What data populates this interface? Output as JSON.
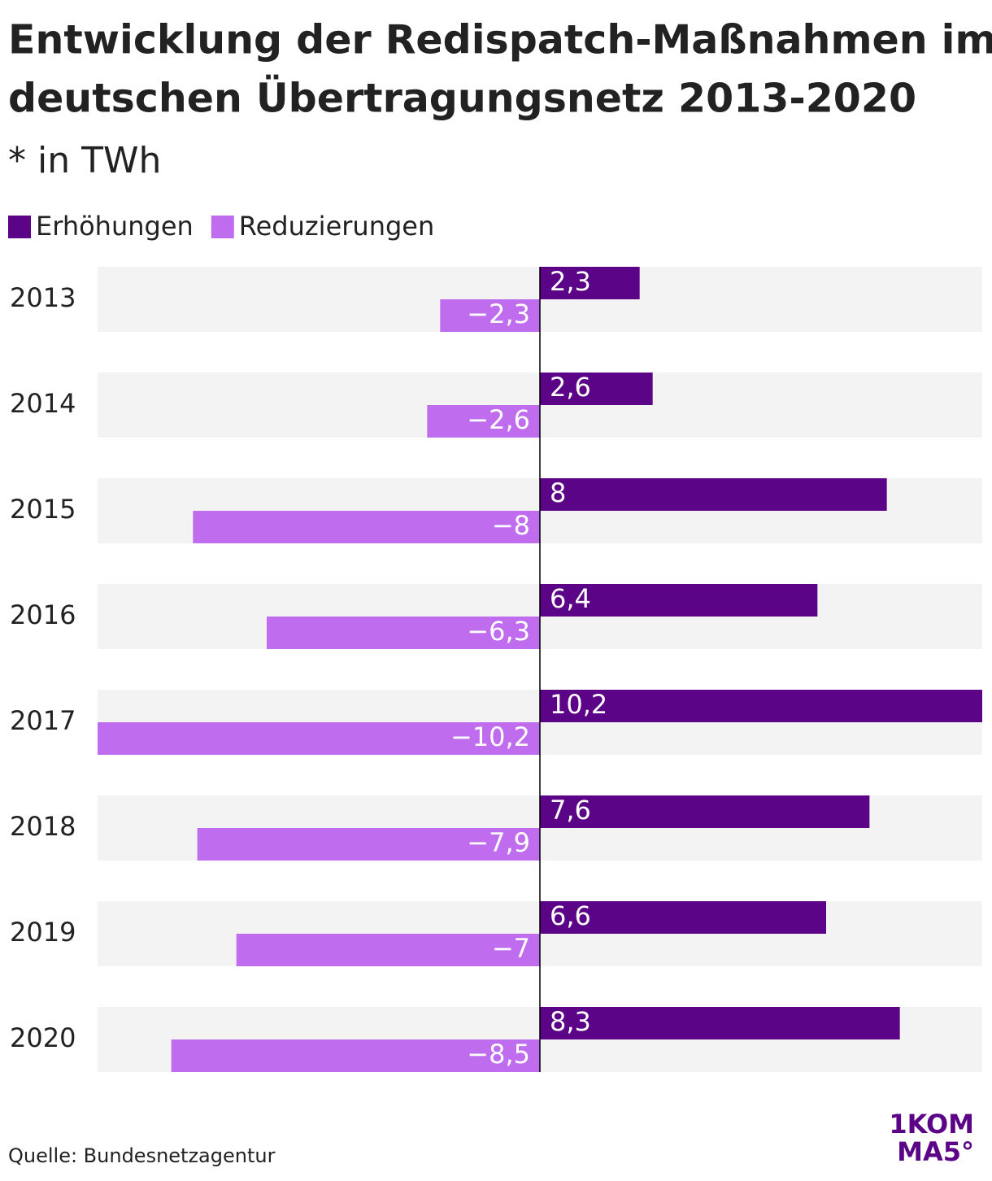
{
  "chart_data": {
    "type": "bar",
    "orientation": "horizontal",
    "title": [
      "Entwicklung der Redispatch-Maßnahmen im",
      "deutschen Übertragungsnetz 2013-2020"
    ],
    "subtitle": "* in TWh",
    "categories": [
      "2013",
      "2014",
      "2015",
      "2016",
      "2017",
      "2018",
      "2019",
      "2020"
    ],
    "series": [
      {
        "name": "Erhöhungen",
        "color": "#5c0487",
        "values": [
          2.3,
          2.6,
          8,
          6.4,
          10.2,
          7.6,
          6.6,
          8.3
        ],
        "value_labels": [
          "2,3",
          "2,6",
          "8",
          "6,4",
          "10,2",
          "7,6",
          "6,6",
          "8,3"
        ]
      },
      {
        "name": "Reduzierungen",
        "color": "#bf6cee",
        "values": [
          -2.3,
          -2.6,
          -8,
          -6.3,
          -10.2,
          -7.9,
          -7,
          -8.5
        ],
        "value_labels": [
          "−2,3",
          "−2,6",
          "−8",
          "−6,3",
          "−10,2",
          "−7,9",
          "−7",
          "−8,5"
        ]
      }
    ],
    "xlim": [
      -10.2,
      10.2
    ],
    "source": "Quelle: Bundesnetzagentur",
    "logo": [
      "1KOM",
      "MA5°"
    ]
  }
}
